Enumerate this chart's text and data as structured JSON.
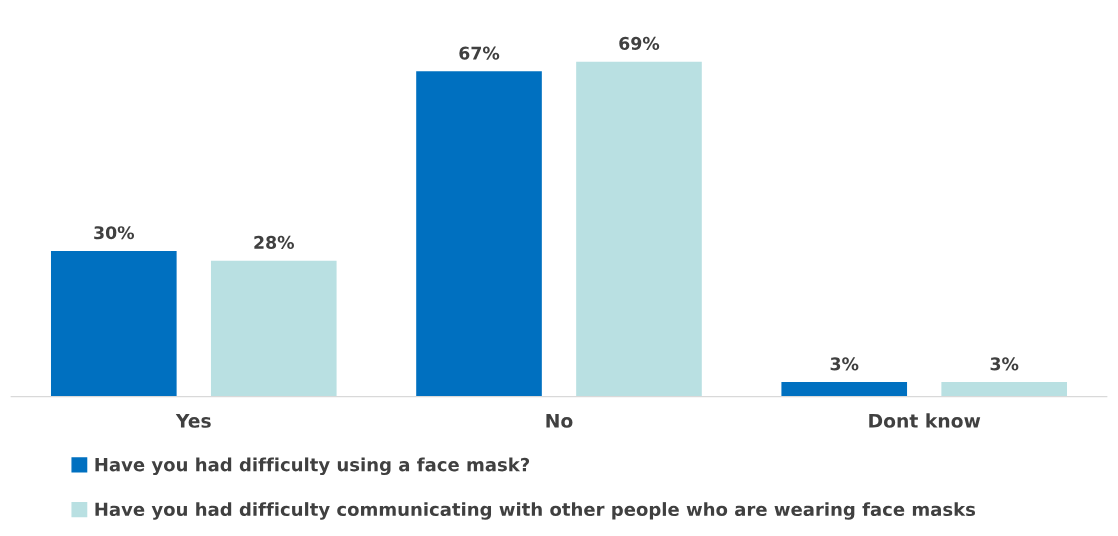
{
  "chart_data": {
    "type": "bar",
    "categories": [
      "Yes",
      "No",
      "Dont know"
    ],
    "series": [
      {
        "name": "Have you had difficulty using a face mask?",
        "color": "#0070c0",
        "values": [
          30,
          67,
          3
        ],
        "value_labels": [
          "30%",
          "67%",
          "3%"
        ]
      },
      {
        "name": "Have you had difficulty communicating with other people who are wearing face masks",
        "color": "#b9e0e2",
        "values": [
          28,
          69,
          3
        ],
        "value_labels": [
          "28%",
          "69%",
          "3%"
        ]
      }
    ],
    "legend": "bottom left",
    "grid": false
  }
}
